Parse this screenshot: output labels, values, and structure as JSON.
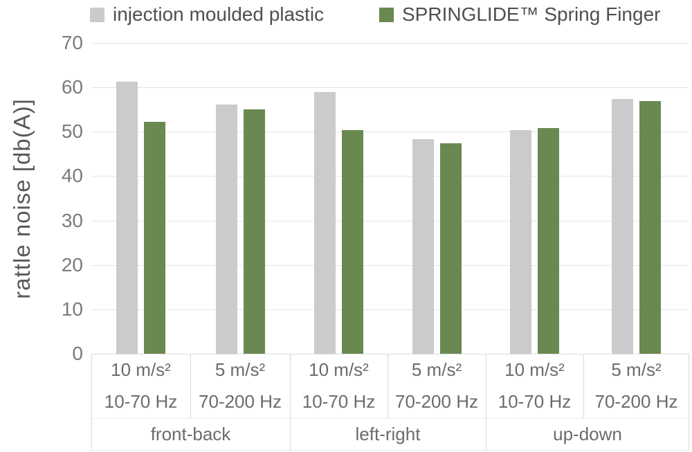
{
  "chart_data": {
    "type": "bar",
    "title": "",
    "ylabel": "rattle noise [db(A)]",
    "xlabel": "",
    "ylim": [
      0,
      70
    ],
    "yticks": [
      0,
      10,
      20,
      30,
      40,
      50,
      60,
      70
    ],
    "grid": true,
    "legend_position": "top",
    "series": [
      {
        "name": "injection moulded plastic",
        "color": "#cbcbcb"
      },
      {
        "name": "SPRINGLIDE™ Spring Finger",
        "color": "#698950"
      }
    ],
    "groups": [
      {
        "direction": "front-back",
        "subgroups": [
          {
            "acceleration": "10 m/s²",
            "frequency": "10-70 Hz",
            "values": [
              61.2,
              52.3
            ]
          },
          {
            "acceleration": "5 m/s²",
            "frequency": "70-200 Hz",
            "values": [
              56.1,
              55.1
            ]
          }
        ]
      },
      {
        "direction": "left-right",
        "subgroups": [
          {
            "acceleration": "10 m/s²",
            "frequency": "10-70 Hz",
            "values": [
              59.0,
              50.4
            ]
          },
          {
            "acceleration": "5 m/s²",
            "frequency": "70-200 Hz",
            "values": [
              48.4,
              47.4
            ]
          }
        ]
      },
      {
        "direction": "up-down",
        "subgroups": [
          {
            "acceleration": "10 m/s²",
            "frequency": "10-70 Hz",
            "values": [
              50.4,
              50.9
            ]
          },
          {
            "acceleration": "5 m/s²",
            "frequency": "70-200 Hz",
            "values": [
              57.3,
              56.9
            ]
          }
        ]
      }
    ]
  }
}
